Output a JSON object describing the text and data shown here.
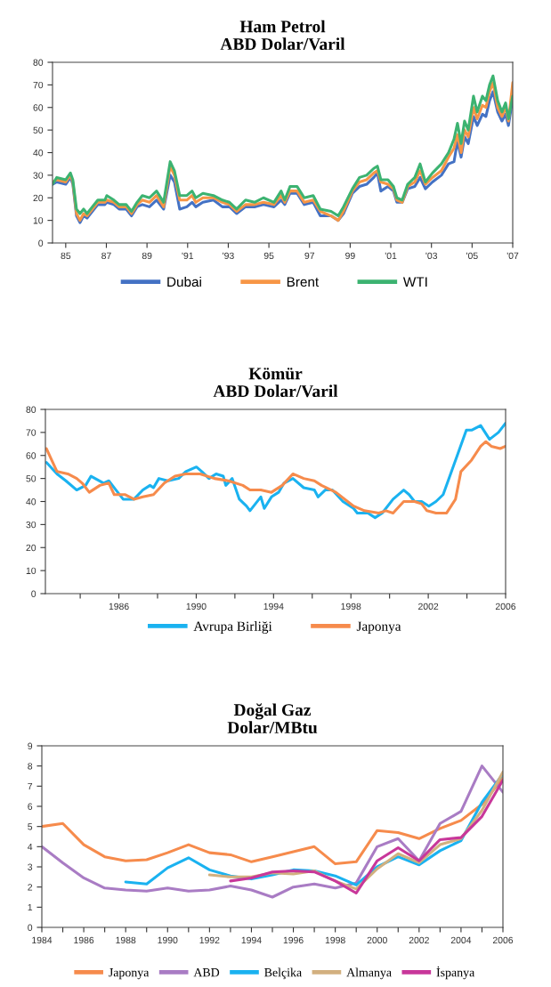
{
  "chart_data": [
    {
      "type": "line",
      "title": "Ham Petrol\nABD Dolar/Varil",
      "x": [
        1984.35,
        1984.56,
        1985.0,
        1985.23,
        1985.35,
        1985.53,
        1985.7,
        1985.88,
        1986.05,
        1986.31,
        1986.58,
        1986.93,
        1987.02,
        1987.37,
        1987.63,
        1987.98,
        1988.24,
        1988.51,
        1988.77,
        1989.12,
        1989.47,
        1989.82,
        1990.14,
        1990.35,
        1990.61,
        1990.96,
        1991.22,
        1991.4,
        1991.75,
        1992.27,
        1992.71,
        1993.06,
        1993.41,
        1993.85,
        1994.29,
        1994.73,
        1995.25,
        1995.6,
        1995.78,
        1996.04,
        1996.39,
        1996.74,
        1997.18,
        1997.53,
        1998.06,
        1998.41,
        1998.67,
        1999.11,
        1999.46,
        1999.81,
        2000.16,
        2000.34,
        2000.51,
        2000.86,
        2001.13,
        2001.3,
        2001.56,
        2001.83,
        2002.18,
        2002.44,
        2002.7,
        2003.05,
        2003.49,
        2003.84,
        2004.11,
        2004.28,
        2004.46,
        2004.63,
        2004.81,
        2005.07,
        2005.25,
        2005.51,
        2005.68,
        2005.86,
        2006.03,
        2006.26,
        2006.47,
        2006.65,
        2006.79,
        2007.0
      ],
      "series": [
        {
          "name": "Dubai",
          "color": "#4472c4",
          "values": [
            26,
            27,
            26,
            29,
            26,
            12,
            9,
            12,
            11,
            14,
            17,
            17,
            18,
            17,
            15,
            15,
            12,
            16,
            17,
            16,
            19,
            15,
            30,
            27,
            15,
            16,
            18,
            16,
            18,
            19,
            16,
            16,
            13,
            16,
            16,
            17,
            16,
            19,
            17,
            22,
            22,
            17,
            18,
            12,
            12,
            10,
            13,
            22,
            25,
            26,
            29,
            31,
            23,
            25,
            23,
            18,
            18,
            24,
            25,
            29,
            24,
            27,
            30,
            35,
            36,
            45,
            38,
            47,
            44,
            56,
            52,
            57,
            56,
            63,
            67,
            58,
            54,
            57,
            52,
            64
          ]
        },
        {
          "name": "Brent",
          "color": "#f79646",
          "values": [
            27,
            28,
            27,
            30,
            27,
            13,
            10,
            13,
            12,
            15,
            18,
            18,
            19,
            18,
            16,
            16,
            13,
            17,
            19,
            18,
            21,
            16,
            34,
            30,
            19,
            19,
            21,
            18,
            20,
            20,
            18,
            17,
            14,
            17,
            17,
            18,
            17,
            21,
            18,
            23,
            23,
            18,
            19,
            14,
            12,
            10,
            14,
            23,
            27,
            28,
            31,
            32,
            27,
            26,
            24,
            19,
            18,
            25,
            27,
            32,
            26,
            29,
            32,
            38,
            42,
            48,
            40,
            50,
            47,
            60,
            55,
            61,
            60,
            67,
            71,
            60,
            56,
            60,
            54,
            71
          ]
        },
        {
          "name": "WTI",
          "color": "#3cb371",
          "values": [
            26,
            29,
            28,
            31,
            28,
            15,
            13,
            15,
            13,
            16,
            19,
            19,
            21,
            19,
            17,
            17,
            14,
            18,
            21,
            20,
            23,
            18,
            36,
            32,
            21,
            21,
            23,
            20,
            22,
            21,
            19,
            18,
            15,
            19,
            18,
            20,
            18,
            23,
            19,
            25,
            25,
            20,
            21,
            15,
            14,
            12,
            16,
            24,
            29,
            30,
            33,
            34,
            28,
            28,
            25,
            20,
            19,
            26,
            29,
            35,
            27,
            31,
            35,
            40,
            46,
            53,
            44,
            54,
            50,
            65,
            58,
            65,
            63,
            70,
            74,
            63,
            58,
            62,
            55,
            65
          ]
        }
      ],
      "xlim": [
        1984.35,
        2007.0
      ],
      "xticks": [
        {
          "value": 1985,
          "label": "85"
        },
        {
          "value": 1987,
          "label": "87"
        },
        {
          "value": 1989,
          "label": "89"
        },
        {
          "value": 1991,
          "label": "'91"
        },
        {
          "value": 1993,
          "label": "'93"
        },
        {
          "value": 1995,
          "label": "95"
        },
        {
          "value": 1997,
          "label": "97"
        },
        {
          "value": 1999,
          "label": "99"
        },
        {
          "value": 2001,
          "label": "'01"
        },
        {
          "value": 2003,
          "label": "'03"
        },
        {
          "value": 2005,
          "label": "'05"
        },
        {
          "value": 2007,
          "label": "'07"
        }
      ],
      "ylim": [
        0,
        80
      ],
      "yticks": [
        0,
        10,
        20,
        30,
        40,
        50,
        60,
        70,
        80
      ],
      "grid": false,
      "legend": "bottom",
      "line_style": "solid"
    },
    {
      "type": "line",
      "title": "Kömür\nABD Dolar/Varil",
      "series": [
        {
          "name": "Avrupa Birliği",
          "color": "#1ab2f0",
          "x": [
            1982.25,
            1982.8,
            1983.26,
            1983.82,
            1984.28,
            1984.56,
            1985.21,
            1985.48,
            1985.85,
            1986.22,
            1986.78,
            1987.24,
            1987.61,
            1987.79,
            1988.07,
            1988.53,
            1989.09,
            1989.46,
            1990.01,
            1990.29,
            1990.66,
            1991.03,
            1991.4,
            1991.53,
            1991.86,
            1992.23,
            1992.6,
            1992.78,
            1993.34,
            1993.52,
            1993.89,
            1994.26,
            1994.54,
            1995.0,
            1995.56,
            1996.11,
            1996.3,
            1996.67,
            1997.04,
            1997.59,
            1998.14,
            1998.33,
            1998.88,
            1999.25,
            1999.62,
            2000.18,
            2000.73,
            2001.01,
            2001.29,
            2001.66,
            2002.03,
            2002.4,
            2002.77,
            2003.5,
            2003.97,
            2004.24,
            2004.71,
            2005.17,
            2005.63,
            2006.0
          ],
          "values": [
            57,
            52,
            49,
            45,
            47,
            51,
            48,
            49,
            45,
            41,
            41,
            45,
            47,
            46,
            50,
            49,
            50,
            53,
            55,
            53,
            50,
            52,
            51,
            47,
            50,
            41,
            38,
            36,
            42,
            37,
            42,
            44,
            48,
            50,
            46,
            45,
            42,
            45,
            45,
            40,
            37,
            35,
            35,
            33,
            35,
            41,
            45,
            43,
            40,
            40,
            38,
            40,
            43,
            60,
            71,
            71,
            73,
            67,
            70,
            74
          ]
        },
        {
          "name": "Japonya",
          "color": "#f68b4c",
          "x": [
            1982.25,
            1982.8,
            1983.36,
            1983.82,
            1984.1,
            1984.47,
            1985.02,
            1985.48,
            1985.76,
            1986.31,
            1986.78,
            1987.24,
            1987.79,
            1988.35,
            1988.9,
            1989.46,
            1990.2,
            1990.94,
            1991.67,
            1992.41,
            1992.78,
            1993.34,
            1993.89,
            1994.45,
            1995.0,
            1995.56,
            1996.11,
            1996.48,
            1997.22,
            1998.14,
            1998.7,
            1999.44,
            1999.81,
            2000.18,
            2000.73,
            2001.29,
            2001.66,
            2001.93,
            2002.4,
            2002.95,
            2003.41,
            2003.69,
            2004.24,
            2004.71,
            2004.98,
            2005.26,
            2005.72,
            2006.0
          ],
          "values": [
            63,
            53,
            52,
            50,
            48,
            44,
            47,
            48,
            43,
            43,
            41,
            42,
            43,
            48,
            51,
            52,
            52,
            50,
            49,
            47,
            45,
            45,
            44,
            47,
            52,
            50,
            49,
            47,
            44,
            38,
            36,
            35,
            36,
            35,
            40,
            40,
            39,
            36,
            35,
            35,
            41,
            53,
            58,
            64,
            66,
            64,
            63,
            64
          ]
        }
      ],
      "xlim": [
        1982.2,
        2006.0
      ],
      "xticks": [
        {
          "value": 1984,
          "label": null
        },
        1986,
        {
          "value": 1988,
          "label": null
        },
        1990,
        {
          "value": 1992,
          "label": null
        },
        1994,
        {
          "value": 1996,
          "label": null
        },
        1998,
        {
          "value": 2000,
          "label": null
        },
        2002,
        {
          "value": 2004,
          "label": null
        },
        2006
      ],
      "ylim": [
        0,
        80
      ],
      "yticks": [
        0,
        10,
        20,
        30,
        40,
        50,
        60,
        70,
        80
      ],
      "grid": false,
      "legend": "bottom",
      "line_style": "solid"
    },
    {
      "type": "line",
      "title": "Doğal Gaz\nDolar/MBtu",
      "x": [
        1984,
        1985,
        1986,
        1987,
        1988,
        1989,
        1990,
        1991,
        1992,
        1993,
        1994,
        1995,
        1996,
        1997,
        1998,
        1999,
        2000,
        2001,
        2002,
        2003,
        2004,
        2005,
        2006
      ],
      "series": [
        {
          "name": "Japonya",
          "color": "#f68b4c",
          "values": [
            5.0,
            5.15,
            4.1,
            3.5,
            3.3,
            3.35,
            3.7,
            4.1,
            3.7,
            3.6,
            3.25,
            3.5,
            3.75,
            4.0,
            3.15,
            3.25,
            4.8,
            4.7,
            4.4,
            4.9,
            5.3,
            6.1,
            7.4
          ]
        },
        {
          "name": "ABD",
          "color": "#a97cc4",
          "values": [
            4.0,
            3.2,
            2.45,
            1.95,
            1.85,
            1.8,
            1.95,
            1.8,
            1.85,
            2.05,
            1.85,
            1.5,
            2.0,
            2.15,
            1.95,
            2.2,
            4.0,
            4.4,
            3.3,
            5.15,
            5.75,
            8.0,
            6.7
          ]
        },
        {
          "name": "Belçika",
          "color": "#1ab2f0",
          "values": [
            null,
            null,
            null,
            null,
            2.25,
            2.15,
            2.95,
            3.45,
            2.85,
            2.55,
            2.4,
            2.6,
            2.85,
            2.8,
            2.55,
            2.1,
            3.0,
            3.5,
            3.1,
            3.8,
            4.3,
            6.2,
            7.6
          ]
        },
        {
          "name": "Almanya",
          "color": "#d2b07f",
          "values": [
            null,
            null,
            null,
            null,
            null,
            null,
            null,
            null,
            2.6,
            2.5,
            2.5,
            2.7,
            2.65,
            2.8,
            2.3,
            1.9,
            2.9,
            3.65,
            3.2,
            4.1,
            4.4,
            5.8,
            7.7
          ]
        },
        {
          "name": "İspanya",
          "color": "#c8379a",
          "values": [
            null,
            null,
            null,
            null,
            null,
            null,
            null,
            null,
            null,
            2.3,
            2.45,
            2.75,
            2.8,
            2.75,
            2.3,
            1.7,
            3.3,
            3.95,
            3.3,
            4.35,
            4.45,
            5.5,
            7.3
          ]
        }
      ],
      "xlim": [
        1984,
        2006
      ],
      "xticks": [
        1984,
        {
          "value": 1985,
          "label": null
        },
        1986,
        {
          "value": 1987,
          "label": null
        },
        1988,
        {
          "value": 1989,
          "label": null
        },
        1990,
        {
          "value": 1991,
          "label": null
        },
        1992,
        {
          "value": 1993,
          "label": null
        },
        1994,
        {
          "value": 1995,
          "label": null
        },
        1996,
        {
          "value": 1997,
          "label": null
        },
        1998,
        {
          "value": 1999,
          "label": null
        },
        2000,
        {
          "value": 2001,
          "label": null
        },
        2002,
        {
          "value": 2003,
          "label": null
        },
        2004,
        {
          "value": 2005,
          "label": null
        },
        2006
      ],
      "ylim": [
        0,
        9
      ],
      "yticks": [
        0,
        1,
        2,
        3,
        4,
        5,
        6,
        7,
        8,
        9
      ],
      "grid": false,
      "legend": "bottom",
      "line_style": "solid"
    }
  ]
}
